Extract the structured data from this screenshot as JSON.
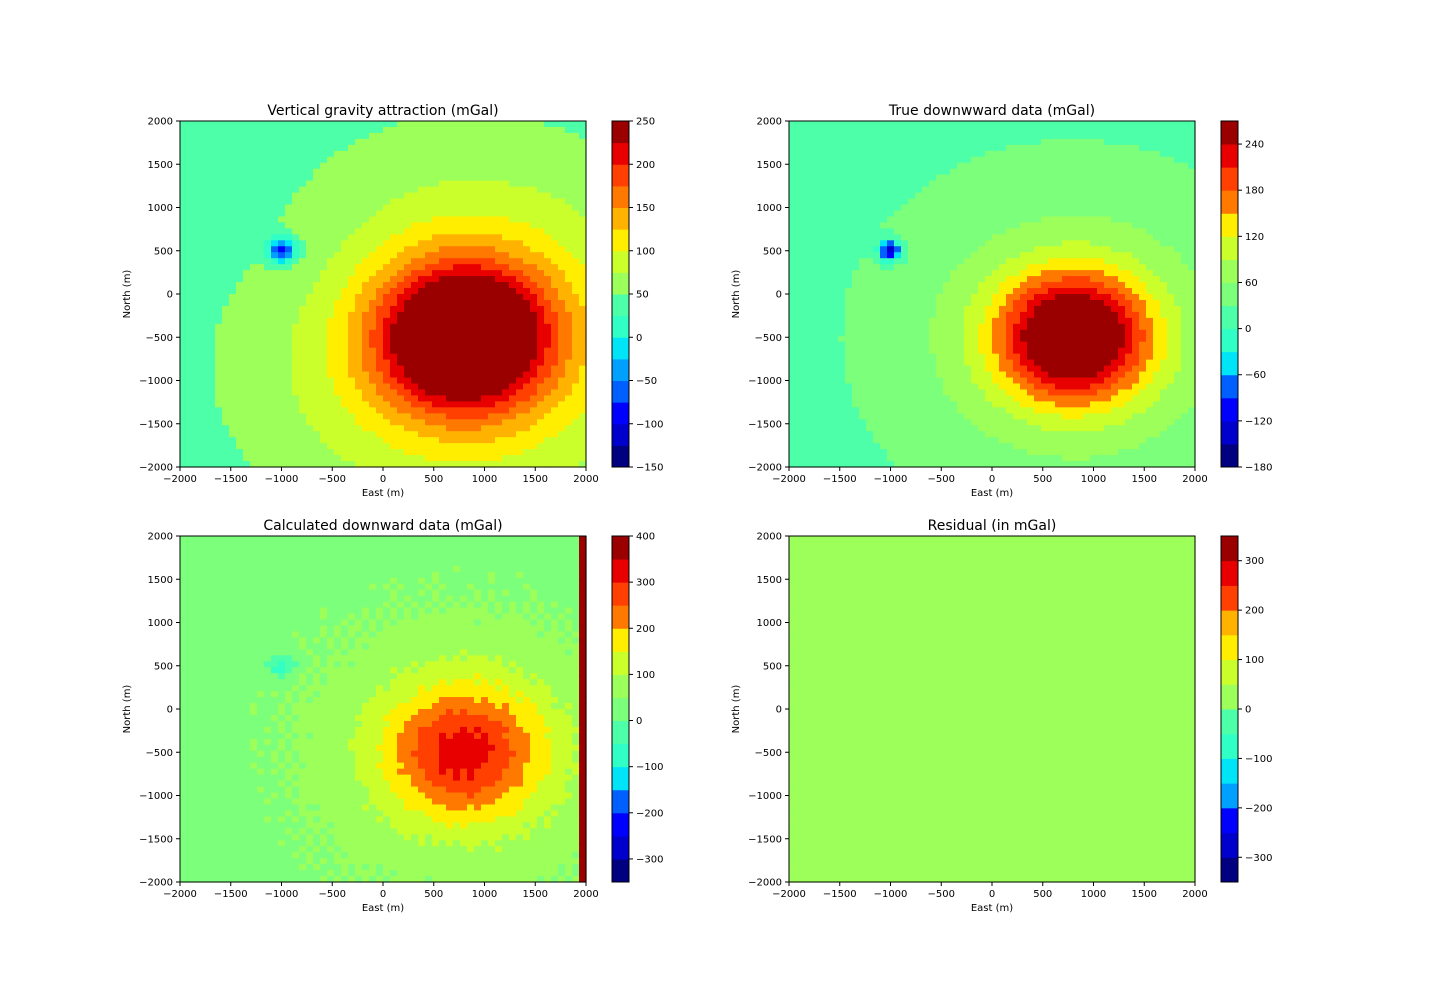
{
  "chart_data": [
    {
      "type": "heatmap",
      "title": "Vertical gravity attraction (mGal)",
      "xlabel": "East (m)",
      "ylabel": "North (m)",
      "xlim": [
        -2000,
        2000
      ],
      "ylim": [
        -2000,
        2000
      ],
      "xticks": [
        "−2000",
        "−1500",
        "−1000",
        "−500",
        "0",
        "500",
        "1000",
        "1500",
        "2000"
      ],
      "yticks": [
        "2000",
        "1500",
        "1000",
        "500",
        "0",
        "−500",
        "−1000",
        "−1500",
        "−2000"
      ],
      "colorbar": {
        "range": [
          -150,
          250
        ],
        "levels": 16,
        "ticks": [
          "250",
          "200",
          "150",
          "100",
          "50",
          "0",
          "−50",
          "−100",
          "−150"
        ]
      },
      "field": {
        "positive_anomaly": {
          "east": 800,
          "north": -500,
          "peak": 250
        },
        "negative_anomaly": {
          "east": -1000,
          "north": 500,
          "peak": -150
        }
      }
    },
    {
      "type": "heatmap",
      "title": "True downwward data (mGal)",
      "xlabel": "East (m)",
      "ylabel": "North (m)",
      "xlim": [
        -2000,
        2000
      ],
      "ylim": [
        -2000,
        2000
      ],
      "xticks": [
        "−2000",
        "−1500",
        "−1000",
        "−500",
        "0",
        "500",
        "1000",
        "1500",
        "2000"
      ],
      "yticks": [
        "2000",
        "1500",
        "1000",
        "500",
        "0",
        "−500",
        "−1000",
        "−1500",
        "−2000"
      ],
      "colorbar": {
        "range": [
          -180,
          270
        ],
        "levels": 15,
        "ticks": [
          "240",
          "180",
          "120",
          "60",
          "0",
          "−60",
          "−120",
          "−180"
        ]
      },
      "field": {
        "positive_anomaly": {
          "east": 800,
          "north": -500,
          "peak": 260
        },
        "negative_anomaly": {
          "east": -1000,
          "north": 500,
          "peak": -170
        }
      }
    },
    {
      "type": "heatmap",
      "title": "Calculated downward data (mGal)",
      "xlabel": "East (m)",
      "ylabel": "North (m)",
      "xlim": [
        -2000,
        2000
      ],
      "ylim": [
        -2000,
        2000
      ],
      "xticks": [
        "−2000",
        "−1500",
        "−1000",
        "−500",
        "0",
        "500",
        "1000",
        "1500",
        "2000"
      ],
      "yticks": [
        "2000",
        "1500",
        "1000",
        "500",
        "0",
        "−500",
        "−1000",
        "−1500",
        "−2000"
      ],
      "colorbar": {
        "range": [
          -350,
          400
        ],
        "levels": 15,
        "ticks": [
          "400",
          "300",
          "200",
          "100",
          "0",
          "−100",
          "−200",
          "−300"
        ]
      },
      "field": {
        "positive_anomaly": {
          "east": 800,
          "north": -500,
          "peak": 250
        },
        "negative_anomaly": {
          "east": -1000,
          "north": 500,
          "peak": -130
        }
      }
    },
    {
      "type": "heatmap",
      "title": "Residual (in mGal)",
      "xlabel": "East (m)",
      "ylabel": "North (m)",
      "xlim": [
        -2000,
        2000
      ],
      "ylim": [
        -2000,
        2000
      ],
      "xticks": [
        "−2000",
        "−1500",
        "−1000",
        "−500",
        "0",
        "500",
        "1000",
        "1500",
        "2000"
      ],
      "yticks": [
        "2000",
        "1500",
        "1000",
        "500",
        "0",
        "−500",
        "−1000",
        "−1500",
        "−2000"
      ],
      "colorbar": {
        "range": [
          -350,
          350
        ],
        "levels": 14,
        "ticks": [
          "300",
          "200",
          "100",
          "0",
          "−100",
          "−200",
          "−300"
        ]
      },
      "field": {
        "uniform_value": 25
      }
    }
  ],
  "colormap": [
    "#000080",
    "#0000cd",
    "#0000ff",
    "#0060ff",
    "#00a0ff",
    "#00e4f8",
    "#30ffc6",
    "#4dffa8",
    "#7cff7a",
    "#9dff59",
    "#cbff2c",
    "#ffee00",
    "#ffb200",
    "#ff7800",
    "#ff4000",
    "#e80000",
    "#9a0000"
  ]
}
